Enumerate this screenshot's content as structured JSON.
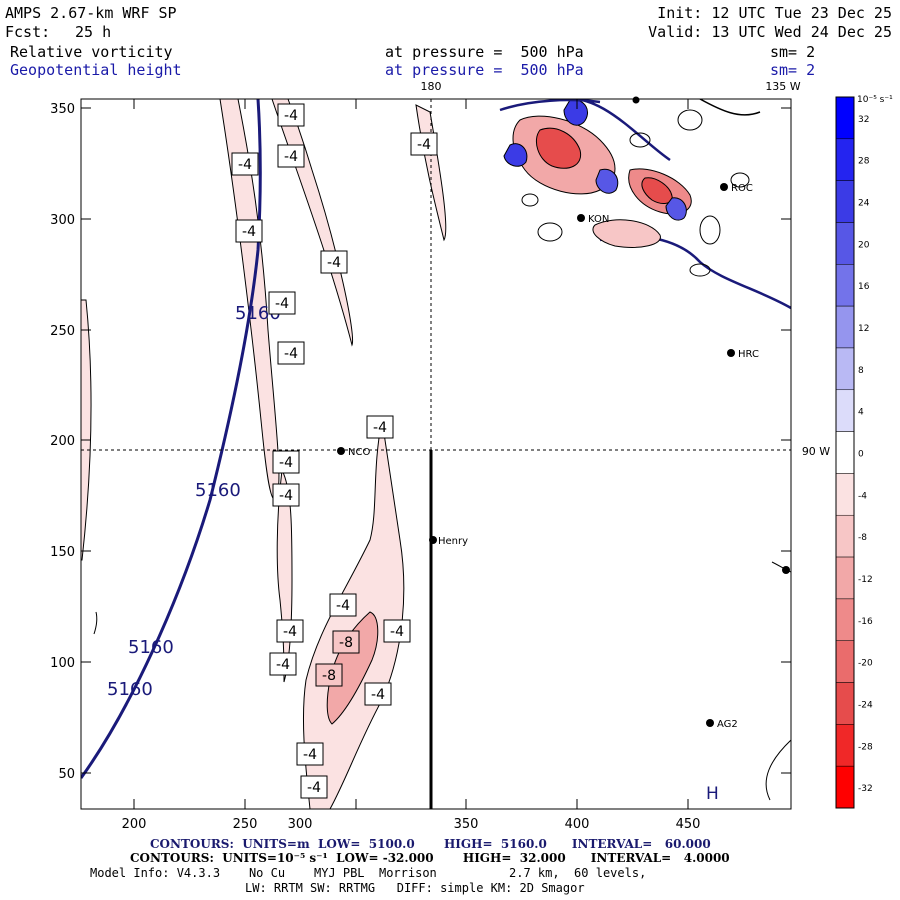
{
  "header": {
    "model": "AMPS 2.67-km WRF SP",
    "forecast_label": "Fcst:",
    "forecast_value": "25 h",
    "init": "Init: 12 UTC Tue 23 Dec 25",
    "valid": "Valid: 13 UTC Wed 24 Dec 25"
  },
  "fields": [
    {
      "name": "Relative vorticity",
      "level": "at pressure =  500 hPa",
      "smooth": "sm= 2"
    },
    {
      "name": "Geopotential height",
      "level": "at pressure =  500 hPa",
      "smooth": "sm= 2"
    }
  ],
  "map": {
    "lon_top_center": "180",
    "lon_top_right": "135 W",
    "lon_right": "90 W",
    "contour_labels": {
      "height": [
        "5160",
        "5160",
        "5160",
        "5160"
      ],
      "vorticity": [
        "-4",
        "-4",
        "-4",
        "-4",
        "-4",
        "-4",
        "-4",
        "-4",
        "-4",
        "-4",
        "-4",
        "-4",
        "-4",
        "-4",
        "-4",
        "-4",
        "-4",
        "-8",
        "-8"
      ]
    },
    "stations": [
      "NCO",
      "Henry",
      "HRC",
      "AG2",
      "ROC",
      "KON"
    ],
    "high_marker": "H"
  },
  "axes": {
    "x_ticks": [
      "200",
      "250",
      "300",
      "350",
      "400",
      "450"
    ],
    "y_ticks": [
      "350",
      "300",
      "250",
      "200",
      "150",
      "100",
      "50"
    ]
  },
  "colorbar": {
    "units": "10⁻⁵ s⁻¹",
    "labels": [
      "32",
      "28",
      "24",
      "20",
      "16",
      "12",
      "8",
      "4",
      "0",
      "-4",
      "-8",
      "-12",
      "-16",
      "-20",
      "-24",
      "-28",
      "-32"
    ],
    "colors": [
      "#0000ff",
      "#2424f0",
      "#3b3be6",
      "#5757e6",
      "#7373ea",
      "#9595ee",
      "#b9b9f4",
      "#dcdcfa",
      "#ffffff",
      "#fbe2e2",
      "#f7c6c6",
      "#f2a8a8",
      "#ee8a8a",
      "#ea6c6c",
      "#e64c4c",
      "#f02828",
      "#ff0000"
    ]
  },
  "footer": {
    "line1": "CONTOURS:  UNITS=m  LOW=  5100.0       HIGH=  5160.0      INTERVAL=   60.000",
    "line2": "CONTOURS:  UNITS=10⁻⁵ s⁻¹  LOW= -32.000       HIGH=  32.000      INTERVAL=   4.0000",
    "line3": "Model Info: V4.3.3    No Cu    MYJ PBL  Morrison          2.7 km,  60 levels,",
    "line4": "LW: RRTM SW: RRTMG   DIFF: simple KM: 2D Smagor"
  }
}
